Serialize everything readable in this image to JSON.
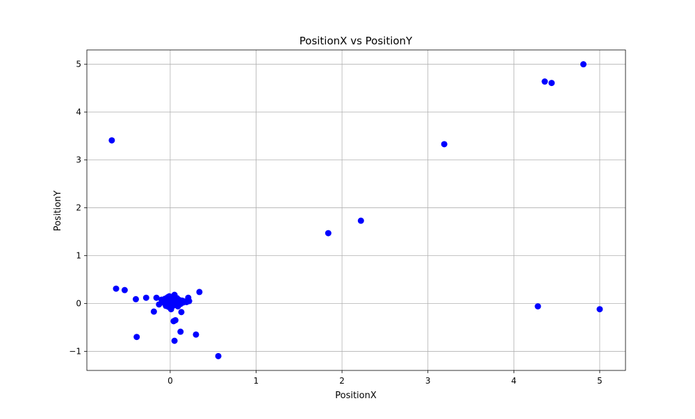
{
  "chart_data": {
    "type": "scatter",
    "title": "PositionX vs PositionY",
    "xlabel": "PositionX",
    "ylabel": "PositionY",
    "xlim": [
      -0.97,
      5.3
    ],
    "ylim": [
      -1.4,
      5.3
    ],
    "xticks": [
      0,
      1,
      2,
      3,
      4,
      5
    ],
    "yticks": [
      -1,
      0,
      1,
      2,
      3,
      4,
      5
    ],
    "xtick_labels": [
      "0",
      "1",
      "2",
      "3",
      "4",
      "5"
    ],
    "ytick_labels": [
      "−1",
      "0",
      "1",
      "2",
      "3",
      "4",
      "5"
    ],
    "grid": true,
    "marker_color": "#0000ff",
    "x": [
      -0.68,
      -0.63,
      -0.53,
      -0.4,
      -0.39,
      -0.28,
      -0.19,
      -0.16,
      -0.13,
      -0.1,
      -0.08,
      -0.06,
      -0.05,
      -0.04,
      -0.03,
      -0.02,
      -0.02,
      -0.01,
      0.0,
      0.0,
      0.01,
      0.02,
      0.03,
      0.03,
      0.04,
      0.05,
      0.05,
      0.06,
      0.07,
      0.08,
      0.08,
      0.09,
      0.1,
      0.11,
      0.12,
      0.12,
      0.13,
      0.14,
      0.15,
      0.17,
      0.19,
      0.21,
      0.22,
      0.04,
      0.06,
      0.12,
      0.05,
      0.3,
      0.34,
      0.56,
      1.84,
      2.22,
      3.19,
      4.28,
      4.36,
      4.44,
      4.81,
      5.0
    ],
    "y": [
      3.41,
      0.31,
      0.28,
      0.09,
      -0.7,
      0.12,
      -0.17,
      0.12,
      -0.02,
      0.08,
      0.02,
      0.1,
      -0.05,
      0.05,
      0.13,
      -0.07,
      0.03,
      0.15,
      -0.02,
      0.06,
      -0.12,
      0.1,
      0.02,
      -0.05,
      0.12,
      0.18,
      0.04,
      -0.03,
      0.08,
      0.01,
      0.11,
      -0.06,
      0.05,
      0.07,
      -0.01,
      0.03,
      -0.18,
      0.06,
      0.02,
      0.04,
      0.03,
      0.12,
      0.05,
      -0.37,
      -0.35,
      -0.59,
      -0.78,
      -0.65,
      0.24,
      -1.1,
      1.47,
      1.73,
      3.33,
      -0.06,
      4.64,
      4.61,
      5.0,
      -0.12
    ]
  }
}
